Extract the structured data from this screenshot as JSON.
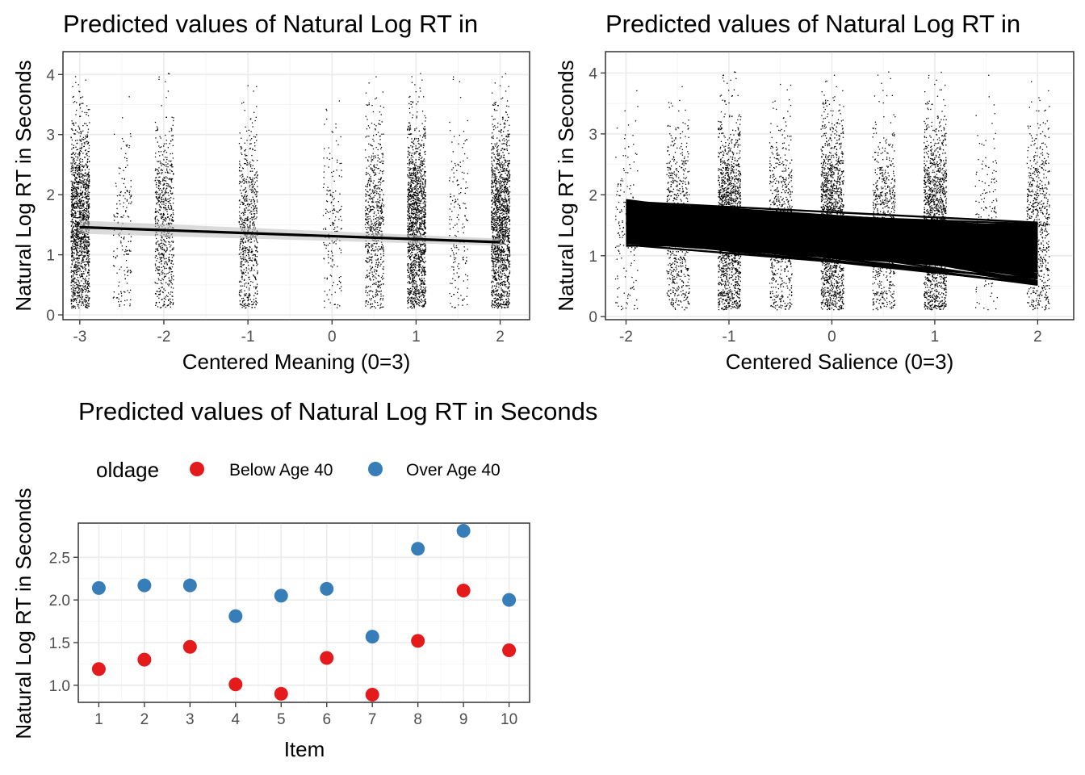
{
  "colors": {
    "below_age_40": "#e41a1c",
    "over_age_40": "#377eb8",
    "raw_points": "#000000",
    "fit_line": "#000000",
    "ci_band": "#bdbdbd"
  },
  "chart_data": [
    {
      "id": "meaning",
      "type": "scatter",
      "title": "Predicted values of Natural Log RT in",
      "xlabel": "Centered Meaning (0=3)",
      "ylabel": "Natural Log RT in Seconds",
      "x_ticks": [
        "-3",
        "-2",
        "-1",
        "0",
        "1",
        "2"
      ],
      "y_ticks": [
        "0",
        "1",
        "2",
        "3",
        "4"
      ],
      "xlim": [
        -3.2,
        2.35
      ],
      "ylim": [
        -0.08,
        4.38
      ],
      "grid": true,
      "raw_point_columns": [
        {
          "x": -3.0,
          "density": "high"
        },
        {
          "x": -2.5,
          "density": "low"
        },
        {
          "x": -2.0,
          "density": "medium"
        },
        {
          "x": -1.0,
          "density": "medium"
        },
        {
          "x": 0.0,
          "density": "low"
        },
        {
          "x": 0.5,
          "density": "medium"
        },
        {
          "x": 1.0,
          "density": "high"
        },
        {
          "x": 1.5,
          "density": "low"
        },
        {
          "x": 2.0,
          "density": "high"
        }
      ],
      "fit_line": {
        "x": [
          -3,
          2
        ],
        "y": [
          1.46,
          1.21
        ]
      },
      "ci_band": {
        "x": [
          -3,
          2
        ],
        "lower": [
          1.35,
          1.15
        ],
        "upper": [
          1.57,
          1.27
        ]
      }
    },
    {
      "id": "salience",
      "type": "scatter",
      "title": "Predicted values of Natural Log RT in",
      "xlabel": "Centered Salience (0=3)",
      "ylabel": "Natural Log RT in Seconds",
      "x_ticks": [
        "-2",
        "-1",
        "0",
        "1",
        "2"
      ],
      "y_ticks": [
        "0",
        "1",
        "2",
        "3",
        "4"
      ],
      "xlim": [
        -2.2,
        2.35
      ],
      "ylim": [
        -0.05,
        4.35
      ],
      "grid": true,
      "raw_point_columns": [
        {
          "x": -2.0,
          "density": "low"
        },
        {
          "x": -1.5,
          "density": "medium"
        },
        {
          "x": -1.0,
          "density": "high"
        },
        {
          "x": -0.5,
          "density": "medium"
        },
        {
          "x": 0.0,
          "density": "high"
        },
        {
          "x": 0.5,
          "density": "medium"
        },
        {
          "x": 1.0,
          "density": "high"
        },
        {
          "x": 1.5,
          "density": "low"
        },
        {
          "x": 2.0,
          "density": "medium"
        }
      ],
      "fit_lines_band": {
        "x": [
          -2,
          2
        ],
        "left_range": [
          1.15,
          1.92
        ],
        "right_range": [
          0.5,
          1.55
        ]
      }
    },
    {
      "id": "items",
      "type": "scatter",
      "title": "Predicted values of Natural Log RT in Seconds",
      "xlabel": "Item",
      "ylabel": "Natural Log RT in Seconds",
      "legend": {
        "title": "oldage",
        "position": "top"
      },
      "categories": [
        "1",
        "2",
        "3",
        "4",
        "5",
        "6",
        "7",
        "8",
        "9",
        "10"
      ],
      "y_ticks": [
        "1.0",
        "1.5",
        "2.0",
        "2.5"
      ],
      "ylim": [
        0.8,
        2.9
      ],
      "grid": true,
      "series": [
        {
          "name": "Below Age 40",
          "values": [
            1.19,
            1.3,
            1.45,
            1.01,
            0.9,
            1.32,
            0.89,
            1.52,
            2.11,
            1.41
          ]
        },
        {
          "name": "Over Age 40",
          "values": [
            2.14,
            2.17,
            2.17,
            1.81,
            2.05,
            2.13,
            1.57,
            2.6,
            2.81,
            2.0
          ]
        }
      ]
    }
  ]
}
